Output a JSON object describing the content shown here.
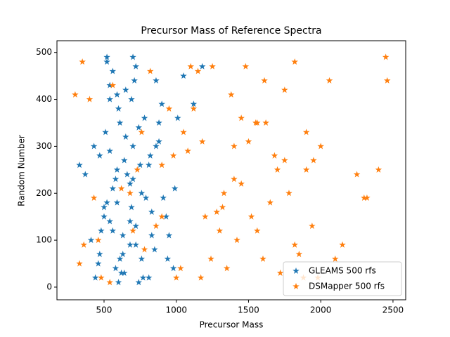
{
  "chart_data": {
    "type": "scatter",
    "title": "Precursor Mass of Reference Spectra",
    "x_label": "Precursor Mass",
    "y_label": "Random Number",
    "xlim": [
      174,
      2588
    ],
    "ylim": [
      -27,
      525
    ],
    "xticks": [
      500,
      1000,
      1500,
      2000,
      2500
    ],
    "yticks": [
      0,
      100,
      200,
      300,
      400,
      500
    ],
    "legend": "lower right",
    "marker": "star",
    "series": [
      {
        "name": "GLEAMS 500 rfs",
        "color": "#1f77b4",
        "x": [
          520,
          610,
          480,
          700,
          760,
          650,
          560,
          830,
          900,
          440,
          590,
          720,
          680,
          510,
          790,
          860,
          620,
          540,
          470,
          950,
          1010,
          580,
          740,
          690,
          810,
          630,
          500,
          880,
          560,
          410,
          770,
          660,
          930,
          600,
          720,
          540,
          850,
          1050,
          460,
          680,
          740,
          590,
          810,
          520,
          980,
          640,
          700,
          560,
          1120,
          430,
          760,
          880,
          610,
          690,
          540,
          820,
          370,
          720,
          650,
          500,
          910,
          580,
          780,
          1180,
          630,
          700,
          470,
          860,
          600,
          540,
          750,
          990,
          680,
          520,
          640,
          330,
          830,
          710,
          590,
          940
        ],
        "values": [
          480,
          350,
          120,
          300,
          60,
          420,
          210,
          160,
          390,
          20,
          250,
          470,
          90,
          330,
          190,
          440,
          30,
          140,
          280,
          110,
          360,
          230,
          10,
          400,
          260,
          70,
          170,
          310,
          460,
          100,
          20,
          240,
          150,
          380,
          130,
          290,
          80,
          450,
          50,
          220,
          340,
          410,
          20,
          180,
          40,
          270,
          490,
          120,
          390,
          300,
          200,
          350,
          60,
          170,
          430,
          280,
          240,
          90,
          320,
          150,
          190,
          40,
          360,
          470,
          110,
          230,
          70,
          300,
          10,
          400,
          260,
          210,
          140,
          490,
          30,
          260,
          110,
          440,
          180,
          60
        ]
      },
      {
        "name": "DSMapper 500 rfs",
        "color": "#ff7f0e",
        "x": [
          350,
          1400,
          900,
          1750,
          2100,
          620,
          1250,
          480,
          1900,
          1550,
          1050,
          2450,
          780,
          1320,
          1680,
          400,
          1980,
          1150,
          2300,
          860,
          1600,
          300,
          1450,
          1820,
          950,
          2000,
          1200,
          560,
          1700,
          1350,
          2250,
          700,
          1100,
          1500,
          1880,
          430,
          1620,
          980,
          2150,
          1280,
          1780,
          820,
          1420,
          2400,
          1030,
          1560,
          360,
          1940,
          1180,
          680,
          1480,
          1720,
          900,
          2060,
          1300,
          540,
          1650,
          1120,
          1850,
          1400,
          760,
          1520,
          2320,
          1000,
          1750,
          460,
          1380,
          1900,
          1240,
          1610,
          2460,
          1080,
          1450,
          730,
          1820,
          1560,
          330,
          1950,
          1170,
          1330
        ],
        "values": [
          480,
          300,
          150,
          420,
          60,
          210,
          470,
          20,
          250,
          350,
          330,
          490,
          80,
          170,
          280,
          400,
          20,
          460,
          190,
          130,
          60,
          410,
          220,
          90,
          380,
          300,
          150,
          430,
          250,
          40,
          240,
          120,
          470,
          310,
          20,
          190,
          350,
          280,
          90,
          160,
          200,
          460,
          100,
          250,
          40,
          350,
          90,
          130,
          310,
          200,
          470,
          30,
          260,
          440,
          120,
          10,
          180,
          380,
          70,
          230,
          330,
          150,
          190,
          20,
          270,
          100,
          410,
          330,
          60,
          440,
          440,
          290,
          360,
          250,
          480,
          120,
          50,
          270,
          20,
          200
        ]
      }
    ]
  }
}
